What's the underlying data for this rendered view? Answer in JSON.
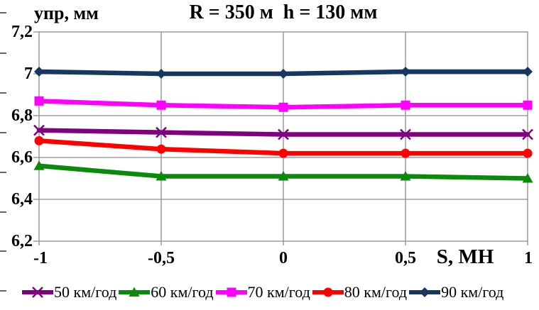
{
  "chart_data": {
    "type": "line",
    "title": "R = 350 м  h = 130 мм",
    "ylabel": "упр, мм",
    "xlabel": "S, МН",
    "x": [
      -1,
      -0.5,
      0,
      0.5,
      1
    ],
    "xlim": [
      -1,
      1
    ],
    "ylim": [
      6.2,
      7.2
    ],
    "xtick_labels": [
      "-1",
      "-0,5",
      "0",
      "0,5",
      "1"
    ],
    "ytick_labels": [
      "7,2",
      "7",
      "6,8",
      "6,6",
      "6,4",
      "6,2"
    ],
    "ytick_values": [
      7.2,
      7.0,
      6.8,
      6.6,
      6.4,
      6.2
    ],
    "grid": true,
    "legend_position": "bottom",
    "series": [
      {
        "name": "50 км/год",
        "color": "#800080",
        "marker": "x",
        "values": [
          6.73,
          6.72,
          6.71,
          6.71,
          6.71
        ]
      },
      {
        "name": "60 км/год",
        "color": "#0A8A0A",
        "marker": "triangle",
        "values": [
          6.56,
          6.51,
          6.51,
          6.51,
          6.5
        ]
      },
      {
        "name": "70 км/год",
        "color": "#FF00FF",
        "marker": "square",
        "values": [
          6.87,
          6.85,
          6.84,
          6.85,
          6.85
        ]
      },
      {
        "name": "80 км/год",
        "color": "#FF0000",
        "marker": "circle",
        "values": [
          6.68,
          6.64,
          6.62,
          6.62,
          6.62
        ]
      },
      {
        "name": "90 км/год",
        "color": "#17375E",
        "marker": "diamond",
        "values": [
          7.01,
          7.0,
          7.0,
          7.01,
          7.01
        ]
      }
    ],
    "colors": {
      "grid": "#8C8C8C",
      "text": "#000000",
      "background": "#FFFFFF"
    }
  }
}
